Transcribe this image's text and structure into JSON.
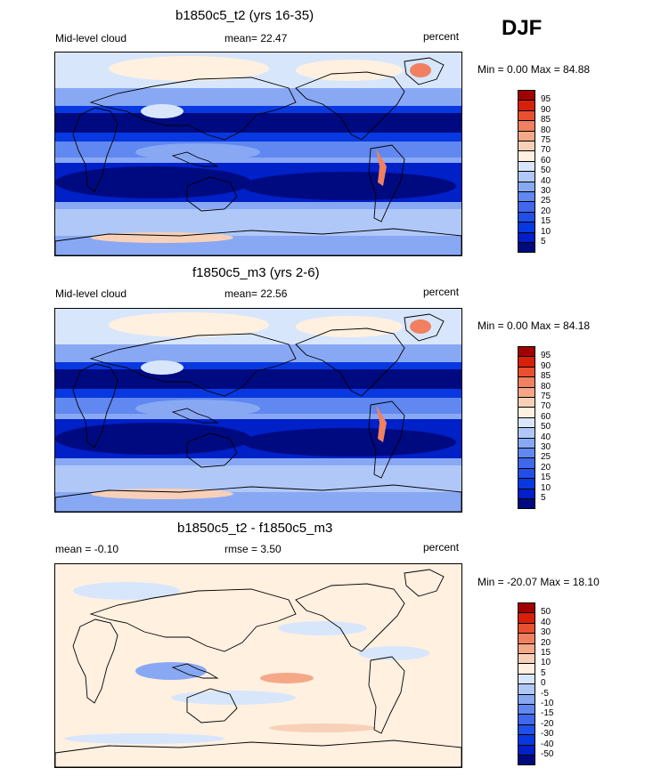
{
  "season": "DJF",
  "colors": {
    "ramp": [
      "#000a80",
      "#0020c8",
      "#0838e0",
      "#2050e8",
      "#4068ec",
      "#6088f0",
      "#88a8f4",
      "#b0c8f8",
      "#d8e6fc",
      "#fff0e0",
      "#f8d0b8",
      "#f4a888",
      "#f08060",
      "#e85030",
      "#d82008",
      "#a00000"
    ],
    "coast": "#000000"
  },
  "panels": [
    {
      "title": "b1850c5_t2 (yrs 16-35)",
      "left_label": "Mid-level cloud",
      "center_label": "mean=  22.47",
      "right_label": "percent",
      "minmax": "Min =   0.00 Max =  84.88",
      "levels": [
        "95",
        "90",
        "85",
        "80",
        "75",
        "70",
        "60",
        "50",
        "40",
        "30",
        "25",
        "20",
        "15",
        "10",
        "5"
      ],
      "background": "#88a8f4"
    },
    {
      "title": "f1850c5_m3 (yrs 2-6)",
      "left_label": "Mid-level cloud",
      "center_label": "mean=  22.56",
      "right_label": "percent",
      "minmax": "Min =   0.00 Max =  84.18",
      "levels": [
        "95",
        "90",
        "85",
        "80",
        "75",
        "70",
        "60",
        "50",
        "40",
        "30",
        "25",
        "20",
        "15",
        "10",
        "5"
      ],
      "background": "#88a8f4"
    },
    {
      "title": "b1850c5_t2 - f1850c5_m3",
      "left_label": "mean =  -0.10",
      "center_label": "rmse =   3.50",
      "right_label": "percent",
      "minmax": "Min = -20.07 Max =  18.10",
      "levels": [
        "50",
        "40",
        "30",
        "20",
        "15",
        "10",
        "5",
        "0",
        "-5",
        "-10",
        "-15",
        "-20",
        "-30",
        "-40",
        "-50"
      ],
      "background": "#fff0e0"
    }
  ],
  "chart_data": [
    {
      "type": "heatmap",
      "title": "b1850c5_t2 (yrs 16-35)",
      "variable": "Mid-level cloud",
      "units": "percent",
      "season": "DJF",
      "mean": 22.47,
      "min": 0.0,
      "max": 84.88,
      "contour_levels": [
        5,
        10,
        15,
        20,
        25,
        30,
        40,
        50,
        60,
        70,
        75,
        80,
        85,
        90,
        95
      ]
    },
    {
      "type": "heatmap",
      "title": "f1850c5_m3 (yrs 2-6)",
      "variable": "Mid-level cloud",
      "units": "percent",
      "season": "DJF",
      "mean": 22.56,
      "min": 0.0,
      "max": 84.18,
      "contour_levels": [
        5,
        10,
        15,
        20,
        25,
        30,
        40,
        50,
        60,
        70,
        75,
        80,
        85,
        90,
        95
      ]
    },
    {
      "type": "heatmap",
      "title": "b1850c5_t2 - f1850c5_m3",
      "units": "percent",
      "season": "DJF",
      "mean": -0.1,
      "rmse": 3.5,
      "min": -20.07,
      "max": 18.1,
      "contour_levels": [
        -50,
        -40,
        -30,
        -20,
        -15,
        -10,
        -5,
        0,
        5,
        10,
        15,
        20,
        30,
        40,
        50
      ]
    }
  ]
}
